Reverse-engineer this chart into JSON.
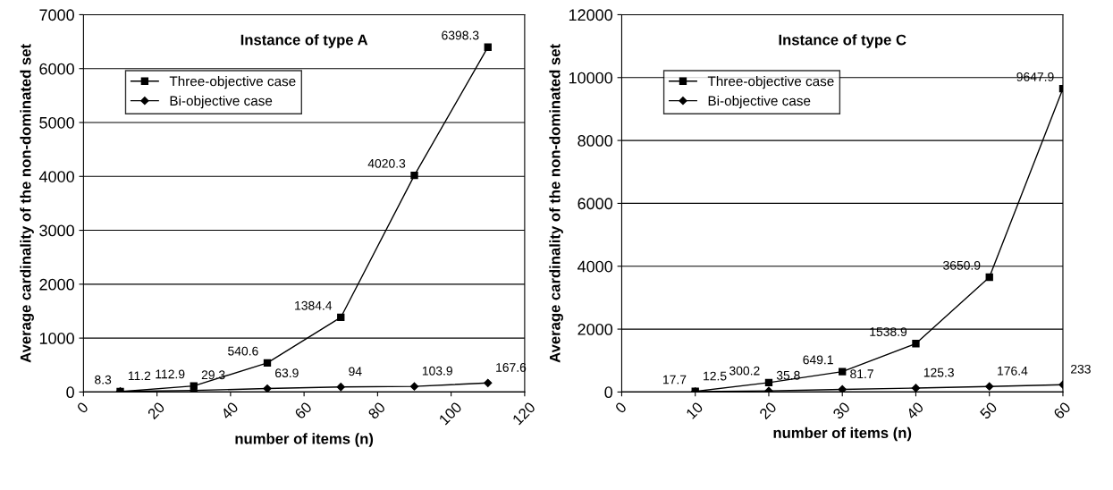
{
  "chart_data": [
    {
      "type": "line",
      "title": "Instance of type A",
      "xlabel": "number of items (n)",
      "ylabel": "Average cardinality of the non-dominated set",
      "xlim": [
        0,
        120
      ],
      "xticks": [
        0,
        20,
        40,
        60,
        80,
        100,
        120
      ],
      "ylim": [
        0,
        7000
      ],
      "yticks": [
        0,
        1000,
        2000,
        3000,
        4000,
        5000,
        6000,
        7000
      ],
      "grid": "y",
      "legend": "upper left",
      "data_labels": true,
      "series": [
        {
          "name": "Three-objective case",
          "color": "#000000",
          "marker": "square",
          "x": [
            10,
            30,
            50,
            70,
            90,
            110
          ],
          "values": [
            8.3,
            112.9,
            540.6,
            1384.4,
            4020.3,
            6398.3
          ]
        },
        {
          "name": "Bi-objective case",
          "color": "#000000",
          "marker": "diamond",
          "x": [
            10,
            30,
            50,
            70,
            90,
            110
          ],
          "values": [
            11.2,
            29.3,
            63.9,
            94,
            103.9,
            167.6
          ]
        }
      ]
    },
    {
      "type": "line",
      "title": "Instance of type C",
      "xlabel": "number of items (n)",
      "ylabel": "Average cardinality of the non-dominated set",
      "xlim": [
        0,
        60
      ],
      "xticks": [
        0,
        10,
        20,
        30,
        40,
        50,
        60
      ],
      "ylim": [
        0,
        12000
      ],
      "yticks": [
        0,
        2000,
        4000,
        6000,
        8000,
        10000,
        12000
      ],
      "grid": "y",
      "legend": "upper left",
      "data_labels": true,
      "series": [
        {
          "name": "Three-objective case",
          "color": "#000000",
          "marker": "square",
          "x": [
            10,
            20,
            30,
            40,
            50,
            60
          ],
          "values": [
            17.7,
            300.2,
            649.1,
            1538.9,
            3650.9,
            9647.9
          ]
        },
        {
          "name": "Bi-objective case",
          "color": "#000000",
          "marker": "diamond",
          "x": [
            10,
            20,
            30,
            40,
            50,
            60
          ],
          "values": [
            12.5,
            35.8,
            81.7,
            125.3,
            176.4,
            233
          ]
        }
      ]
    }
  ]
}
